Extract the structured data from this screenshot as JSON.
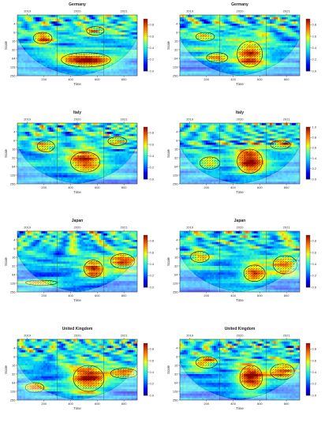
{
  "chart_data": [
    {
      "type": "heatmap",
      "title": "Germany",
      "xlabel": "Time",
      "ylabel": "Scale",
      "x_ticks": [
        200,
        400,
        600,
        800
      ],
      "top_ticks": [
        {
          "label": "2019",
          "x": 75
        },
        {
          "label": "2020",
          "x": 450
        },
        {
          "label": "2021",
          "x": 800
        }
      ],
      "y_ticks": [
        4,
        8,
        16,
        32,
        64,
        128,
        256
      ],
      "colorbar_ticks": [
        0.0,
        0.2,
        0.4,
        0.6,
        0.8
      ],
      "x_range": [
        0,
        900
      ],
      "y_scale": "log2",
      "significant_regions": [
        {
          "x0": 330,
          "x1": 700,
          "scale0": 40,
          "scale1": 128,
          "peak": 0.9
        },
        {
          "x0": 120,
          "x1": 260,
          "scale0": 8,
          "scale1": 20,
          "peak": 0.75
        },
        {
          "x0": 520,
          "x1": 650,
          "scale0": 5,
          "scale1": 10,
          "peak": 0.7
        }
      ]
    },
    {
      "type": "heatmap",
      "title": "Germany",
      "xlabel": "Time",
      "ylabel": "Scale",
      "x_ticks": [
        200,
        400,
        600,
        800
      ],
      "top_ticks": [
        {
          "label": "2019",
          "x": 75
        },
        {
          "label": "2020",
          "x": 450
        },
        {
          "label": "2021",
          "x": 800
        }
      ],
      "y_ticks": [
        4,
        8,
        16,
        32,
        64,
        128,
        256
      ],
      "colorbar_ticks": [
        0.0,
        0.2,
        0.4,
        0.6,
        0.8
      ],
      "x_range": [
        0,
        900
      ],
      "y_scale": "log2",
      "significant_regions": [
        {
          "x0": 430,
          "x1": 620,
          "scale0": 16,
          "scale1": 128,
          "peak": 0.9
        },
        {
          "x0": 200,
          "x1": 360,
          "scale0": 40,
          "scale1": 90,
          "peak": 0.7
        },
        {
          "x0": 120,
          "x1": 260,
          "scale0": 8,
          "scale1": 16,
          "peak": 0.65
        }
      ]
    },
    {
      "type": "heatmap",
      "title": "Italy",
      "xlabel": "Time",
      "ylabel": "Scale",
      "x_ticks": [
        200,
        400,
        600,
        800
      ],
      "top_ticks": [
        {
          "label": "2019",
          "x": 75
        },
        {
          "label": "2020",
          "x": 450
        },
        {
          "label": "2021",
          "x": 800
        }
      ],
      "y_ticks": [
        4,
        8,
        16,
        32,
        64,
        128,
        256
      ],
      "colorbar_ticks": [
        0.0,
        0.2,
        0.4,
        0.6,
        0.8
      ],
      "x_range": [
        0,
        900
      ],
      "y_scale": "log2",
      "significant_regions": [
        {
          "x0": 400,
          "x1": 620,
          "scale0": 20,
          "scale1": 100,
          "peak": 0.9
        },
        {
          "x0": 150,
          "x1": 280,
          "scale0": 8,
          "scale1": 20,
          "peak": 0.7
        },
        {
          "x0": 680,
          "x1": 820,
          "scale0": 6,
          "scale1": 12,
          "peak": 0.65
        }
      ]
    },
    {
      "type": "heatmap",
      "title": "Italy",
      "xlabel": "Time",
      "ylabel": "Scale",
      "x_ticks": [
        200,
        400,
        600,
        800
      ],
      "top_ticks": [
        {
          "label": "2019",
          "x": 75
        },
        {
          "label": "2020",
          "x": 450
        },
        {
          "label": "2021",
          "x": 800
        }
      ],
      "y_ticks": [
        4,
        8,
        16,
        32,
        64,
        128,
        256
      ],
      "colorbar_ticks": [
        0.0,
        0.2,
        0.4,
        0.6,
        0.8,
        1.0
      ],
      "x_range": [
        0,
        900
      ],
      "y_scale": "log2",
      "significant_regions": [
        {
          "x0": 430,
          "x1": 620,
          "scale0": 16,
          "scale1": 110,
          "peak": 0.95
        },
        {
          "x0": 150,
          "x1": 300,
          "scale0": 30,
          "scale1": 80,
          "peak": 0.7
        },
        {
          "x0": 680,
          "x1": 830,
          "scale0": 8,
          "scale1": 16,
          "peak": 0.65
        }
      ]
    },
    {
      "type": "heatmap",
      "title": "Japan",
      "xlabel": "Time",
      "ylabel": "Scale",
      "x_ticks": [
        200,
        400,
        600,
        800
      ],
      "top_ticks": [
        {
          "label": "2019",
          "x": 75
        },
        {
          "label": "2020",
          "x": 450
        },
        {
          "label": "2021",
          "x": 800
        }
      ],
      "y_ticks": [
        4,
        8,
        16,
        32,
        64,
        128,
        256
      ],
      "colorbar_ticks": [
        0.0,
        0.2,
        0.4,
        0.6,
        0.8
      ],
      "x_range": [
        0,
        900
      ],
      "y_scale": "log2",
      "significant_regions": [
        {
          "x0": 500,
          "x1": 640,
          "scale0": 20,
          "scale1": 80,
          "peak": 0.85
        },
        {
          "x0": 700,
          "x1": 880,
          "scale0": 12,
          "scale1": 40,
          "peak": 0.8
        },
        {
          "x0": 60,
          "x1": 300,
          "scale0": 100,
          "scale1": 150,
          "peak": 0.7
        }
      ]
    },
    {
      "type": "heatmap",
      "title": "Japan",
      "xlabel": "Time",
      "ylabel": "Scale",
      "x_ticks": [
        200,
        400,
        600,
        800
      ],
      "top_ticks": [
        {
          "label": "2019",
          "x": 75
        },
        {
          "label": "2020",
          "x": 450
        },
        {
          "label": "2021",
          "x": 800
        }
      ],
      "y_ticks": [
        4,
        8,
        16,
        32,
        64,
        128,
        256
      ],
      "colorbar_ticks": [
        0.0,
        0.2,
        0.4,
        0.6,
        0.8
      ],
      "x_range": [
        0,
        900
      ],
      "y_scale": "log2",
      "significant_regions": [
        {
          "x0": 480,
          "x1": 640,
          "scale0": 30,
          "scale1": 110,
          "peak": 0.85
        },
        {
          "x0": 700,
          "x1": 880,
          "scale0": 14,
          "scale1": 60,
          "peak": 0.8
        },
        {
          "x0": 80,
          "x1": 220,
          "scale0": 10,
          "scale1": 24,
          "peak": 0.65
        }
      ]
    },
    {
      "type": "heatmap",
      "title": "United Kingdom",
      "xlabel": "Time",
      "ylabel": "Scale",
      "x_ticks": [
        200,
        400,
        600,
        800
      ],
      "top_ticks": [
        {
          "label": "2019",
          "x": 75
        },
        {
          "label": "2020",
          "x": 450
        },
        {
          "label": "2021",
          "x": 800
        }
      ],
      "y_ticks": [
        4,
        8,
        16,
        32,
        64,
        128,
        256
      ],
      "colorbar_ticks": [
        0.0,
        0.2,
        0.4,
        0.6,
        0.8
      ],
      "x_range": [
        0,
        900
      ],
      "y_scale": "log2",
      "significant_regions": [
        {
          "x0": 420,
          "x1": 650,
          "scale0": 16,
          "scale1": 128,
          "peak": 0.9
        },
        {
          "x0": 700,
          "x1": 900,
          "scale0": 20,
          "scale1": 45,
          "peak": 0.7
        },
        {
          "x0": 60,
          "x1": 200,
          "scale0": 64,
          "scale1": 140,
          "peak": 0.7
        }
      ]
    },
    {
      "type": "heatmap",
      "title": "United Kingdom",
      "xlabel": "Time",
      "ylabel": "Scale",
      "x_ticks": [
        200,
        400,
        600,
        800
      ],
      "top_ticks": [
        {
          "label": "2019",
          "x": 75
        },
        {
          "label": "2020",
          "x": 450
        },
        {
          "label": "2021",
          "x": 800
        }
      ],
      "y_ticks": [
        4,
        8,
        16,
        32,
        64,
        128,
        256
      ],
      "colorbar_ticks": [
        0.0,
        0.2,
        0.4,
        0.6,
        0.8
      ],
      "x_range": [
        0,
        900
      ],
      "y_scale": "log2",
      "significant_regions": [
        {
          "x0": 450,
          "x1": 620,
          "scale0": 16,
          "scale1": 110,
          "peak": 0.9
        },
        {
          "x0": 680,
          "x1": 860,
          "scale0": 14,
          "scale1": 50,
          "peak": 0.75
        },
        {
          "x0": 120,
          "x1": 280,
          "scale0": 8,
          "scale1": 20,
          "peak": 0.65
        }
      ]
    }
  ]
}
